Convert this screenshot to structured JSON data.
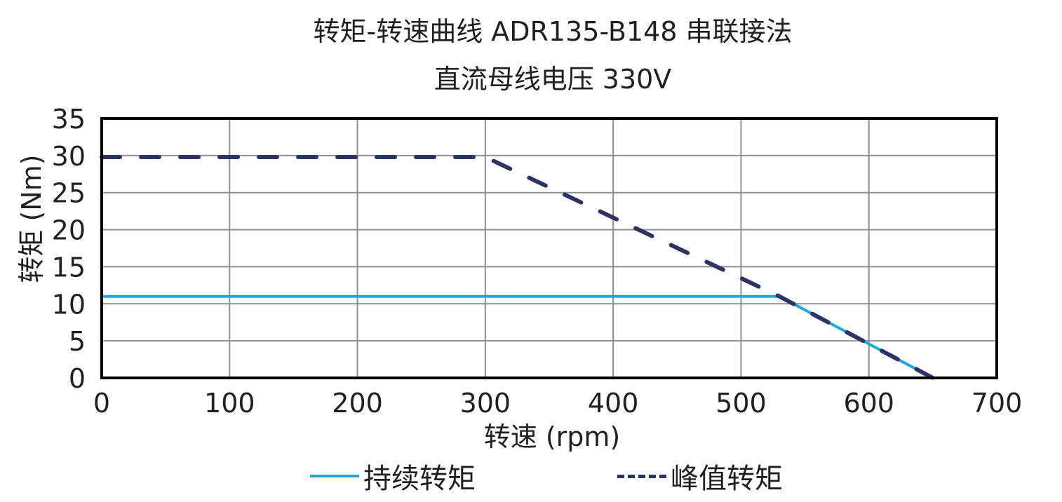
{
  "title": {
    "line1": "转矩-转速曲线 ADR135-B148 串联接法",
    "line2": "直流母线电压 330V"
  },
  "axes": {
    "xlabel": "转速 (rpm)",
    "ylabel": "转矩 (Nm)",
    "xticks": [
      "0",
      "100",
      "200",
      "300",
      "400",
      "500",
      "600",
      "700"
    ],
    "yticks": [
      "0",
      "5",
      "10",
      "15",
      "20",
      "25",
      "30",
      "35"
    ]
  },
  "legend": {
    "continuous": "持续转矩",
    "peak": "峰值转矩"
  },
  "colors": {
    "continuous": "#1fa8dc",
    "peak": "#2e3366",
    "grid": "#8f8f8f",
    "frame": "#000000"
  },
  "chart_data": {
    "type": "line",
    "title": "转矩-转速曲线 ADR135-B148 串联接法",
    "subtitle": "直流母线电压 330V",
    "xlabel": "转速 (rpm)",
    "ylabel": "转矩 (Nm)",
    "xlim": [
      0,
      700
    ],
    "ylim": [
      0,
      35
    ],
    "xticks": [
      0,
      100,
      200,
      300,
      400,
      500,
      600,
      700
    ],
    "yticks": [
      0,
      5,
      10,
      15,
      20,
      25,
      30,
      35
    ],
    "grid": true,
    "legend_position": "bottom",
    "series": [
      {
        "name": "持续转矩",
        "style": "solid",
        "color": "#1fa8dc",
        "x": [
          0,
          530,
          650
        ],
        "y": [
          11,
          11,
          0
        ]
      },
      {
        "name": "峰值转矩",
        "style": "dashed",
        "color": "#2e3366",
        "x": [
          0,
          300,
          530,
          650
        ],
        "y": [
          29.8,
          29.8,
          11,
          0
        ]
      }
    ]
  }
}
